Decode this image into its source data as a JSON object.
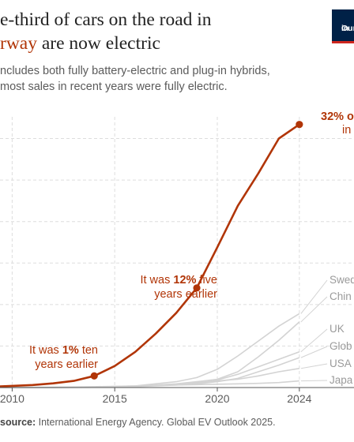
{
  "title": {
    "line1": "e-third of cars on the road in",
    "line2_highlight": "rway",
    "line2_rest": " are now electric"
  },
  "subtitle": {
    "line1": "ncludes both fully battery-electric and plug-in hybrids,",
    "line2": "most sales in recent years were fully electric."
  },
  "logo": {
    "line1": "Our",
    "line2": "in"
  },
  "source": {
    "label": "source:",
    "text": " International Energy Agency. Global EV Outlook 2025."
  },
  "colors": {
    "norway": "#b13507",
    "others": "#d3d3d3",
    "grid": "#dddddd",
    "axis": "#555555",
    "label_gray": "#9a9a9a"
  },
  "chart_data": {
    "type": "line",
    "xlim": [
      2009.6,
      2025.2
    ],
    "ylim": [
      0,
      33
    ],
    "x_ticks": [
      2010,
      2015,
      2020,
      2024
    ],
    "y_gridlines": [
      5,
      10,
      15,
      20,
      25,
      30
    ],
    "grid": true,
    "series": [
      {
        "name": "",
        "highlight": true,
        "x": [
          2009,
          2010,
          2011,
          2012,
          2013,
          2014,
          2015,
          2016,
          2017,
          2018,
          2019,
          2020,
          2021,
          2022,
          2023,
          2024
        ],
        "values": [
          0.1,
          0.2,
          0.3,
          0.5,
          0.8,
          1.4,
          2.6,
          4.3,
          6.5,
          9.0,
          12.0,
          16.9,
          21.9,
          25.8,
          30.0,
          31.7
        ]
      },
      {
        "name": "Swed",
        "x": [
          2009,
          2012,
          2014,
          2016,
          2018,
          2019,
          2020,
          2021,
          2022,
          2023,
          2024
        ],
        "values": [
          0,
          0.02,
          0.06,
          0.2,
          0.7,
          1.2,
          2.2,
          3.8,
          5.6,
          7.4,
          8.9
        ]
      },
      {
        "name": "Chin",
        "x": [
          2009,
          2012,
          2014,
          2016,
          2018,
          2019,
          2020,
          2021,
          2022,
          2023,
          2024
        ],
        "values": [
          0,
          0.01,
          0.05,
          0.15,
          0.45,
          0.7,
          1.0,
          1.9,
          3.7,
          5.7,
          7.9
        ]
      },
      {
        "name": "UK",
        "x": [
          2009,
          2012,
          2014,
          2016,
          2018,
          2019,
          2020,
          2021,
          2022,
          2023,
          2024
        ],
        "values": [
          0,
          0.01,
          0.04,
          0.15,
          0.35,
          0.5,
          0.9,
          1.6,
          2.5,
          3.4,
          4.3
        ]
      },
      {
        "name": "Glob",
        "x": [
          2009,
          2012,
          2014,
          2016,
          2018,
          2019,
          2020,
          2021,
          2022,
          2023,
          2024
        ],
        "values": [
          0,
          0.01,
          0.03,
          0.1,
          0.3,
          0.45,
          0.7,
          1.1,
          1.9,
          2.7,
          3.6
        ]
      },
      {
        "name": "USA",
        "x": [
          2009,
          2012,
          2014,
          2016,
          2018,
          2019,
          2020,
          2021,
          2022,
          2023,
          2024
        ],
        "values": [
          0,
          0.03,
          0.08,
          0.15,
          0.4,
          0.6,
          0.8,
          1.0,
          1.4,
          1.9,
          2.3
        ]
      },
      {
        "name": "Japa",
        "x": [
          2009,
          2012,
          2014,
          2016,
          2018,
          2019,
          2020,
          2021,
          2022,
          2023,
          2024
        ],
        "values": [
          0,
          0.04,
          0.1,
          0.2,
          0.3,
          0.35,
          0.4,
          0.45,
          0.5,
          0.6,
          0.8
        ]
      }
    ],
    "markers": [
      {
        "x": 2014,
        "y": 1.4
      },
      {
        "x": 2019,
        "y": 12.0
      },
      {
        "x": 2024,
        "y": 31.7
      }
    ],
    "annotations": [
      {
        "id": "ten-years",
        "lines": [
          [
            "It was ",
            "1%",
            " ten"
          ],
          [
            "years earlier"
          ]
        ]
      },
      {
        "id": "five-years",
        "lines": [
          [
            "It was ",
            "12%",
            " five"
          ],
          [
            "years earlier"
          ]
        ]
      },
      {
        "id": "latest",
        "lines": [
          [
            "",
            "32% o",
            ""
          ],
          [
            "in"
          ]
        ]
      }
    ]
  }
}
